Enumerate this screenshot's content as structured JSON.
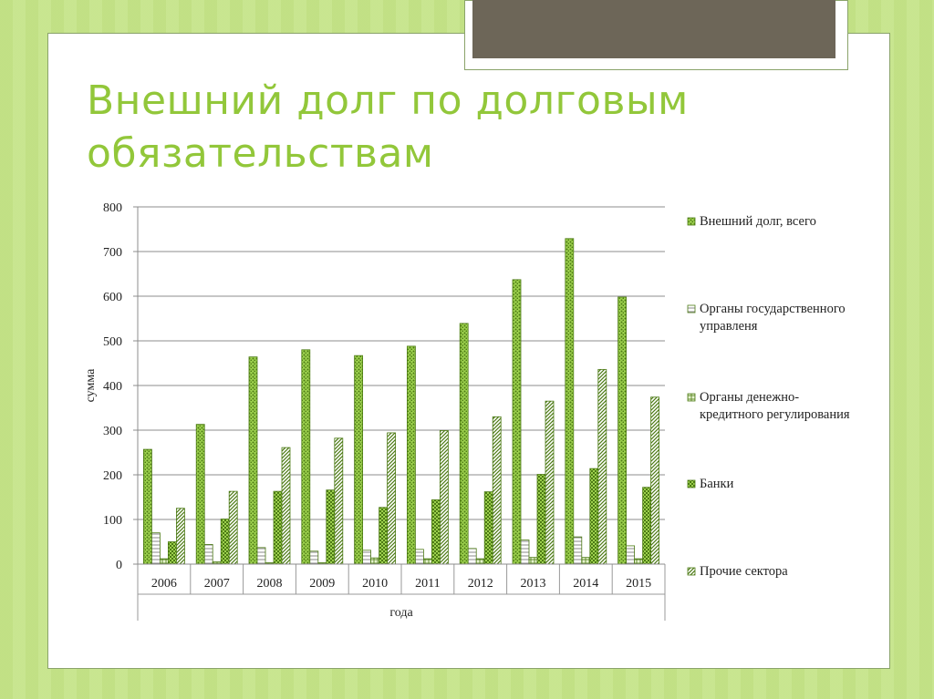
{
  "slide": {
    "title_line1": "Внешний долг по долговым",
    "title_line2": "обязательствам"
  },
  "colors": {
    "background": "#c5e38a",
    "title": "#92c73a",
    "dark_box": "#6d6658",
    "series_fill": "#9dd14e",
    "series_stroke": "#4c7a14"
  },
  "chart_data": {
    "type": "bar",
    "xlabel": "года",
    "ylabel": "сумма",
    "ylim": [
      0,
      800
    ],
    "yticks": [
      0,
      100,
      200,
      300,
      400,
      500,
      600,
      700,
      800
    ],
    "grid": true,
    "legend_position": "right",
    "categories": [
      "2006",
      "2007",
      "2008",
      "2009",
      "2010",
      "2011",
      "2012",
      "2013",
      "2014",
      "2015"
    ],
    "series": [
      {
        "name": "Внешний долг, всего",
        "legend_lines": [
          "Внешний долг, всего"
        ],
        "pattern": "dots",
        "values": [
          257,
          313,
          464,
          480,
          467,
          488,
          539,
          637,
          729,
          598
        ]
      },
      {
        "name": "Органы государственного управленя",
        "legend_lines": [
          "Органы государственного",
          "управленя"
        ],
        "pattern": "hlines",
        "values": [
          70,
          44,
          37,
          29,
          31,
          33,
          35,
          54,
          61,
          41
        ]
      },
      {
        "name": "Органы денежно-кредитного регулирования",
        "legend_lines": [
          "Органы денежно-",
          "кредитного регулирования"
        ],
        "pattern": "grid",
        "values": [
          12,
          5,
          3,
          3,
          14,
          12,
          12,
          15,
          15,
          12
        ]
      },
      {
        "name": "Банки",
        "legend_lines": [
          "Банки"
        ],
        "pattern": "checker",
        "values": [
          50,
          101,
          163,
          166,
          127,
          144,
          162,
          201,
          214,
          172
        ]
      },
      {
        "name": "Прочие сектора",
        "legend_lines": [
          "Прочие сектора"
        ],
        "pattern": "diag",
        "values": [
          125,
          163,
          261,
          282,
          294,
          299,
          330,
          365,
          436,
          374
        ]
      }
    ]
  }
}
